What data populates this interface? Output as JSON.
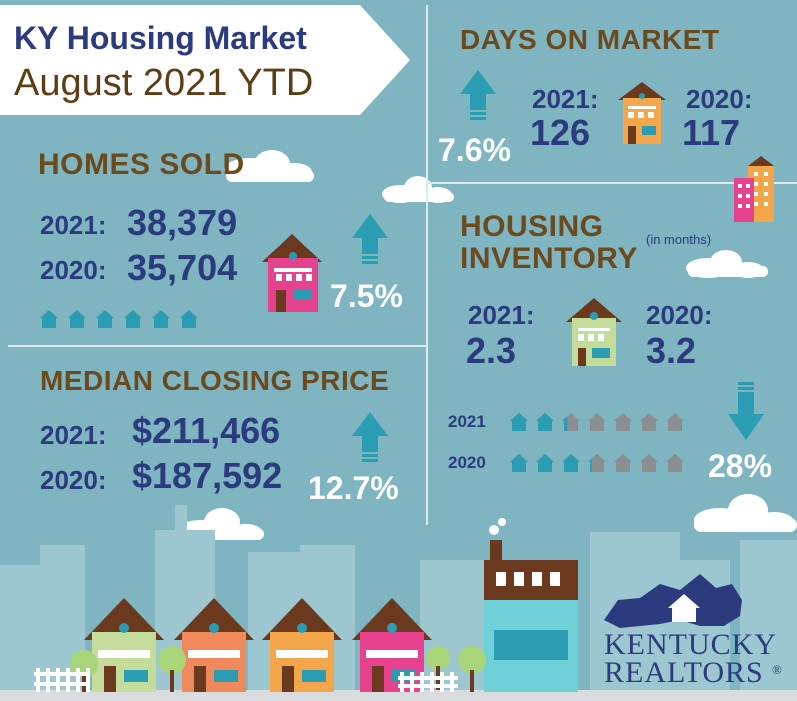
{
  "title": {
    "line1": "KY Housing Market",
    "line2": "August 2021 YTD"
  },
  "homes_sold": {
    "heading": "HOMES SOLD",
    "rows": [
      {
        "year": "2021:",
        "value": "38,379"
      },
      {
        "year": "2020:",
        "value": "35,704"
      }
    ],
    "change": "7.5%",
    "direction": "up"
  },
  "median_price": {
    "heading": "MEDIAN CLOSING PRICE",
    "rows": [
      {
        "year": "2021:",
        "value": "$211,466"
      },
      {
        "year": "2020:",
        "value": "$187,592"
      }
    ],
    "change": "12.7%",
    "direction": "up"
  },
  "days_on_market": {
    "heading": "DAYS ON MARKET",
    "change": "7.6%",
    "direction": "up",
    "y2021_label": "2021:",
    "y2021_value": "126",
    "y2020_label": "2020:",
    "y2020_value": "117"
  },
  "inventory": {
    "heading_line1": "HOUSING",
    "heading_line2": "INVENTORY",
    "note": "(in months)",
    "y2021_label": "2021:",
    "y2021_value": "2.3",
    "y2020_label": "2020:",
    "y2020_value": "3.2",
    "change": "28%",
    "direction": "down",
    "bars": [
      {
        "year": "2021",
        "value": 2.3
      },
      {
        "year": "2020",
        "value": 3.2
      }
    ]
  },
  "logo": {
    "line1": "KENTUCKY",
    "line2": "REALTORS",
    "mark": "®"
  },
  "colors": {
    "background": "#7fb4c1",
    "navy": "#2b3b7e",
    "brown": "#6b4a1e",
    "teal": "#2a9db2",
    "gray_house": "#8c8f92",
    "pink_house": "#e6428f",
    "orange_house": "#f08a5d",
    "amber_house": "#f4a64a",
    "green_house": "#c4dc9a"
  },
  "icons": [
    "up-arrow-icon",
    "down-arrow-icon",
    "house-icon",
    "cloud-icon",
    "kentucky-map-icon"
  ]
}
